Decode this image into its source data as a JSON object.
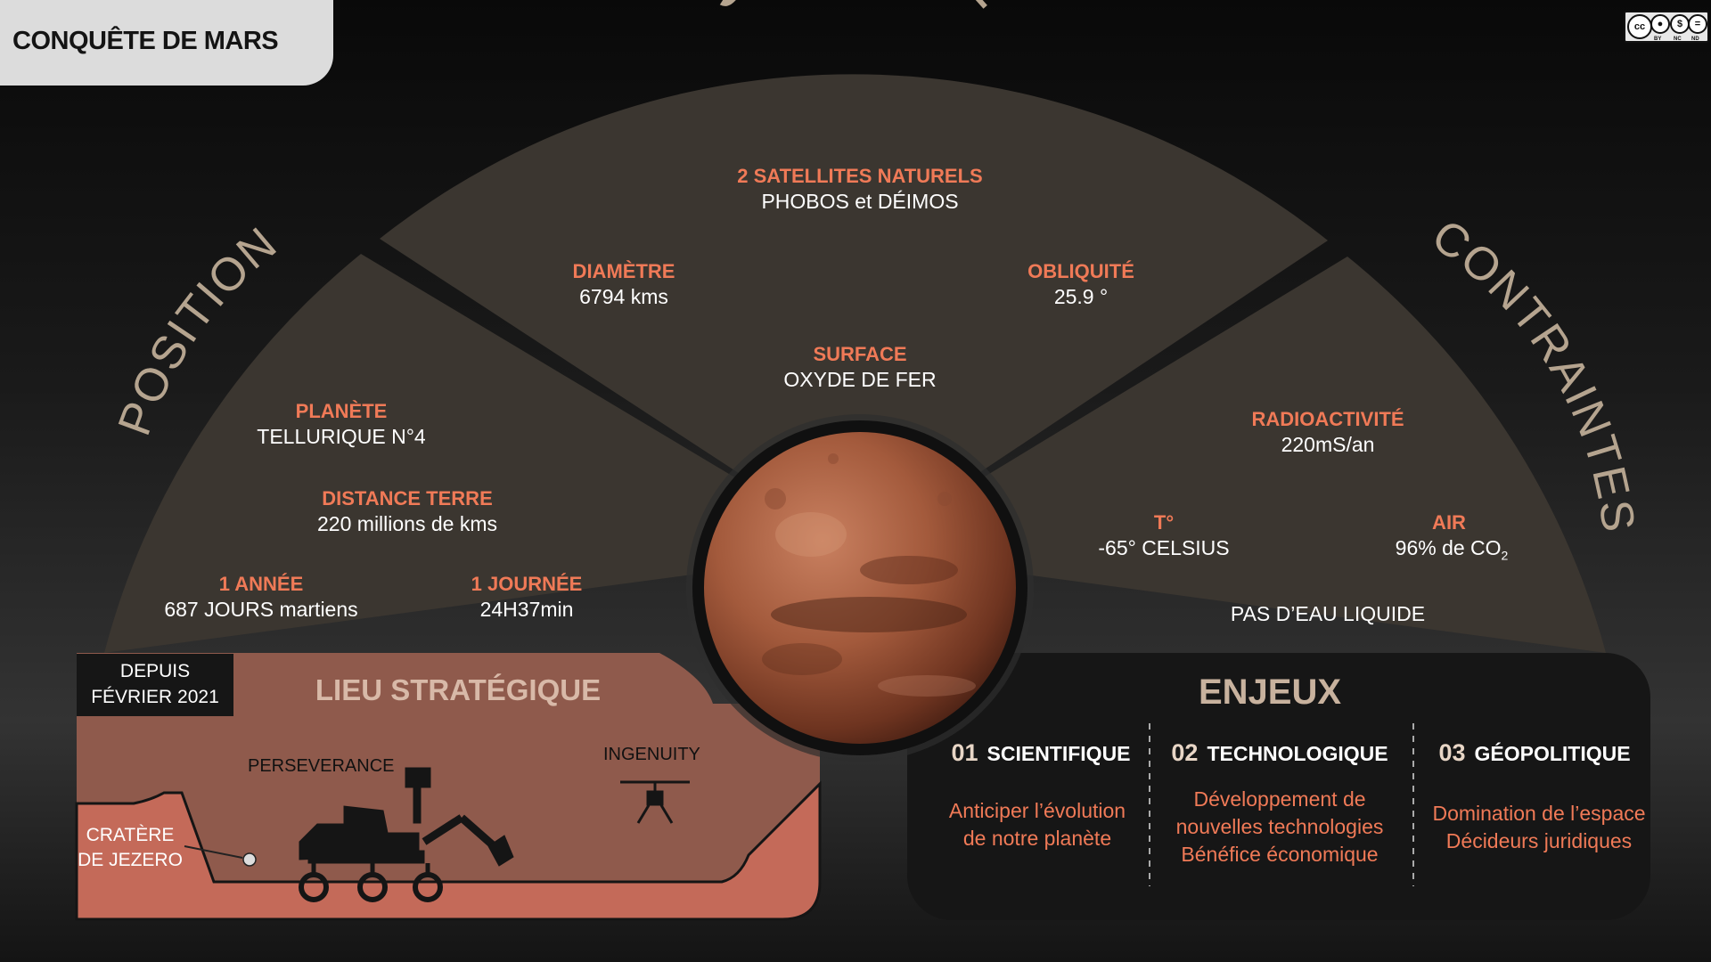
{
  "header": {
    "title": "CONQUÊTE DE MARS"
  },
  "license": {
    "icons": [
      "cc-icon",
      "by-icon",
      "nc-icon",
      "nd-icon"
    ],
    "cc": "cc",
    "by": "BY",
    "nc": "NC",
    "nd": "ND"
  },
  "sections": {
    "structure": "STRUCTURE",
    "position": "POSITION",
    "contraintes": "CONTRAINTES"
  },
  "structure": {
    "satellites_label": "2 SATELLITES NATURELS",
    "satellites_value": "PHOBOS et DÉIMOS",
    "diametre_label": "DIAMÈTRE",
    "diametre_value": "6794 kms",
    "obliquite_label": "OBLIQUITÉ",
    "obliquite_value": "25.9 °",
    "surface_label": "SURFACE",
    "surface_value": "OXYDE DE FER"
  },
  "position": {
    "planete_label": "PLANÈTE",
    "planete_value": "TELLURIQUE N°4",
    "distance_label": "DISTANCE TERRE",
    "distance_value": "220 millions de kms",
    "annee_label": "1 ANNÉE",
    "annee_value": "687 JOURS martiens",
    "journee_label": "1 JOURNÉE",
    "journee_value": "24H37min"
  },
  "contraintes": {
    "radio_label": "RADIOACTIVITÉ",
    "radio_value": "220mS/an",
    "temp_label": "T°",
    "temp_value": "-65° CELSIUS",
    "air_label": "AIR",
    "air_value": "96% de CO",
    "air_sub": "2",
    "eau": "PAS D’EAU LIQUIDE"
  },
  "lieu": {
    "badge_line1": "DEPUIS",
    "badge_line2": "FÉVRIER 2021",
    "title": "LIEU STRATÉGIQUE",
    "perseverance": "PERSEVERANCE",
    "ingenuity": "INGENUITY",
    "crater_line1": "CRATÈRE",
    "crater_line2": "DE JEZERO"
  },
  "enjeux": {
    "title": "ENJEUX",
    "items": [
      {
        "num": "01",
        "title": "SCIENTIFIQUE",
        "line1": "Anticiper l’évolution",
        "line2": "de notre planète",
        "line3": ""
      },
      {
        "num": "02",
        "title": "TECHNOLOGIQUE",
        "line1": "Développement de",
        "line2": "nouvelles technologies",
        "line3": "Bénéfice économique"
      },
      {
        "num": "03",
        "title": "GÉOPOLITIQUE",
        "line1": "Domination de l’espace",
        "line2": "Décideurs juridiques",
        "line3": ""
      }
    ]
  },
  "colors": {
    "accent": "#f07a57",
    "fan": "#3b3630",
    "section_title": "#b5a48f",
    "lieu_bg": "#8f5a4c",
    "ground": "#c46a59"
  }
}
